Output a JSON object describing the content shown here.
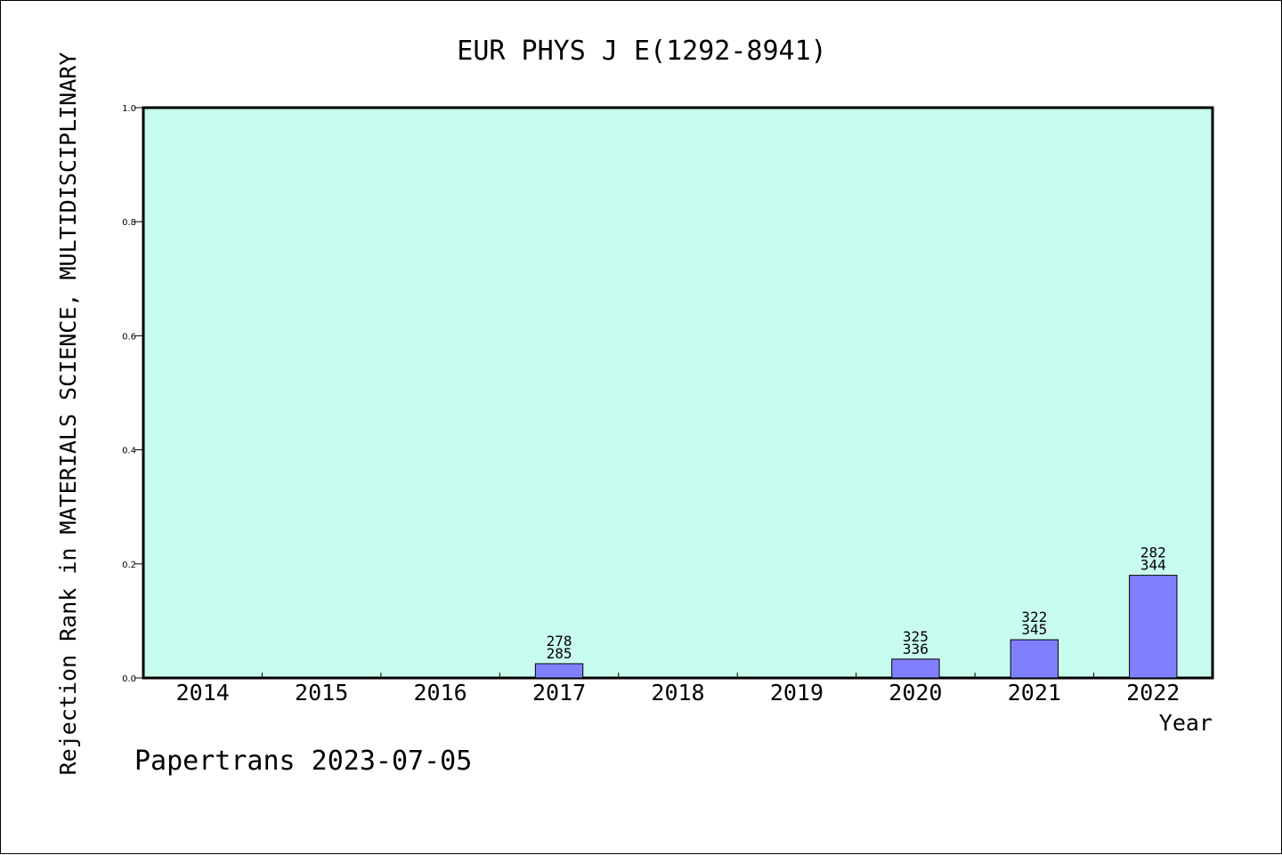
{
  "chart_data": {
    "type": "bar",
    "title": "EUR PHYS J E(1292-8941)",
    "xlabel": "Year",
    "ylabel": "Rejection Rank in MATERIALS SCIENCE, MULTIDISCIPLINARY",
    "categories": [
      "2014",
      "2015",
      "2016",
      "2017",
      "2018",
      "2019",
      "2020",
      "2021",
      "2022"
    ],
    "values": [
      0,
      0,
      0,
      0.025,
      0,
      0,
      0.033,
      0.067,
      0.18
    ],
    "bar_labels": [
      null,
      null,
      null,
      [
        "278",
        "285"
      ],
      null,
      null,
      [
        "325",
        "336"
      ],
      [
        "322",
        "345"
      ],
      [
        "282",
        "344"
      ]
    ],
    "ylim": [
      0,
      1.0
    ],
    "yticks": [
      "0.0",
      "0.2",
      "0.4",
      "0.6",
      "0.8",
      "1.0"
    ],
    "ytick_values": [
      0,
      0.2,
      0.4,
      0.6,
      0.8,
      1.0
    ],
    "grid": false,
    "colors": {
      "plot_background": "#c8fcee",
      "bar_fill": "#8080ff",
      "bar_stroke": "#000000",
      "axis": "#000000"
    }
  },
  "footer": {
    "watermark": "Papertrans 2023-07-05"
  }
}
